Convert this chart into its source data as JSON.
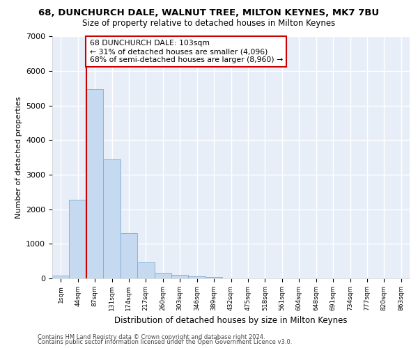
{
  "title": "68, DUNCHURCH DALE, WALNUT TREE, MILTON KEYNES, MK7 7BU",
  "subtitle": "Size of property relative to detached houses in Milton Keynes",
  "xlabel": "Distribution of detached houses by size in Milton Keynes",
  "ylabel": "Number of detached properties",
  "bar_color": "#c5d9f0",
  "bar_edge_color": "#7aadd4",
  "background_color": "#e8eef8",
  "grid_color": "#ffffff",
  "annotation_text": "68 DUNCHURCH DALE: 103sqm\n← 31% of detached houses are smaller (4,096)\n68% of semi-detached houses are larger (8,960) →",
  "vline_x": 2.0,
  "vline_color": "#cc0000",
  "categories": [
    "1sqm",
    "44sqm",
    "87sqm",
    "131sqm",
    "174sqm",
    "217sqm",
    "260sqm",
    "303sqm",
    "346sqm",
    "389sqm",
    "432sqm",
    "475sqm",
    "518sqm",
    "561sqm",
    "604sqm",
    "648sqm",
    "691sqm",
    "734sqm",
    "777sqm",
    "820sqm",
    "863sqm"
  ],
  "values": [
    75,
    2270,
    5480,
    3450,
    1310,
    470,
    160,
    95,
    65,
    50,
    0,
    0,
    0,
    0,
    0,
    0,
    0,
    0,
    0,
    0,
    0
  ],
  "ylim": [
    0,
    7000
  ],
  "yticks": [
    0,
    1000,
    2000,
    3000,
    4000,
    5000,
    6000,
    7000
  ],
  "footer_line1": "Contains HM Land Registry data © Crown copyright and database right 2024.",
  "footer_line2": "Contains public sector information licensed under the Open Government Licence v3.0."
}
